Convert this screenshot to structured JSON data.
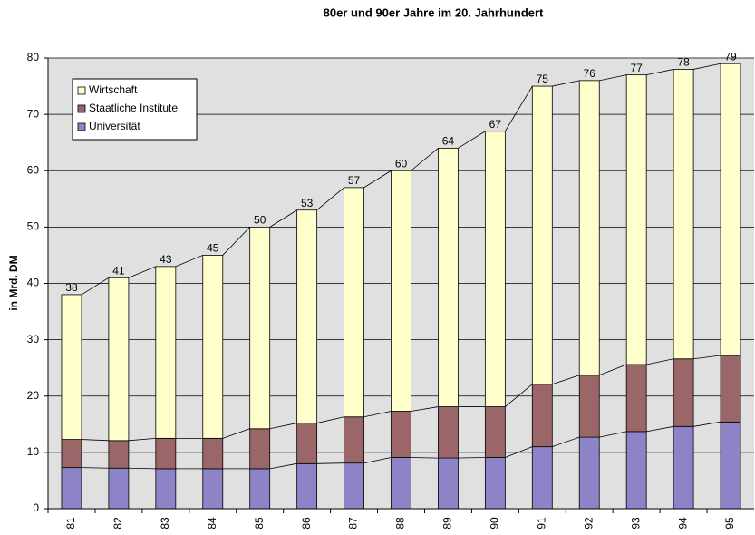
{
  "chart_data": {
    "type": "stacked-bar",
    "title": "80er und 90er Jahre im 20. Jahrhundert",
    "y_label": "in Mrd. DM",
    "categories": [
      "81",
      "82",
      "83",
      "84",
      "85",
      "86",
      "87",
      "88",
      "89",
      "90",
      "91",
      "92",
      "93",
      "94",
      "95"
    ],
    "series": [
      {
        "name": "Universität",
        "color": "#8c84c6",
        "values": [
          7.3,
          7.2,
          7.1,
          7.1,
          7.1,
          8.0,
          8.1,
          9.1,
          9.0,
          9.1,
          11.0,
          12.7,
          13.7,
          14.6,
          15.4
        ]
      },
      {
        "name": "Staatliche Institute",
        "color": "#9a6668",
        "values": [
          5.0,
          4.9,
          5.4,
          5.4,
          7.1,
          7.2,
          8.2,
          8.2,
          9.1,
          9.0,
          11.1,
          11.0,
          11.9,
          12.0,
          11.8
        ]
      },
      {
        "name": "Wirtschaft",
        "color": "#ffffcc",
        "values": [
          25.7,
          28.9,
          30.5,
          32.5,
          35.8,
          37.8,
          40.7,
          42.7,
          45.9,
          48.9,
          52.9,
          52.3,
          51.4,
          51.4,
          51.8
        ]
      }
    ],
    "totals": [
      38,
      41,
      43,
      45,
      50,
      53,
      57,
      60,
      64,
      67,
      75,
      76,
      77,
      78,
      79
    ],
    "ylim": [
      0,
      80
    ],
    "yticks": [
      0,
      10,
      20,
      30,
      40,
      50,
      60,
      70,
      80
    ],
    "grid": true
  }
}
